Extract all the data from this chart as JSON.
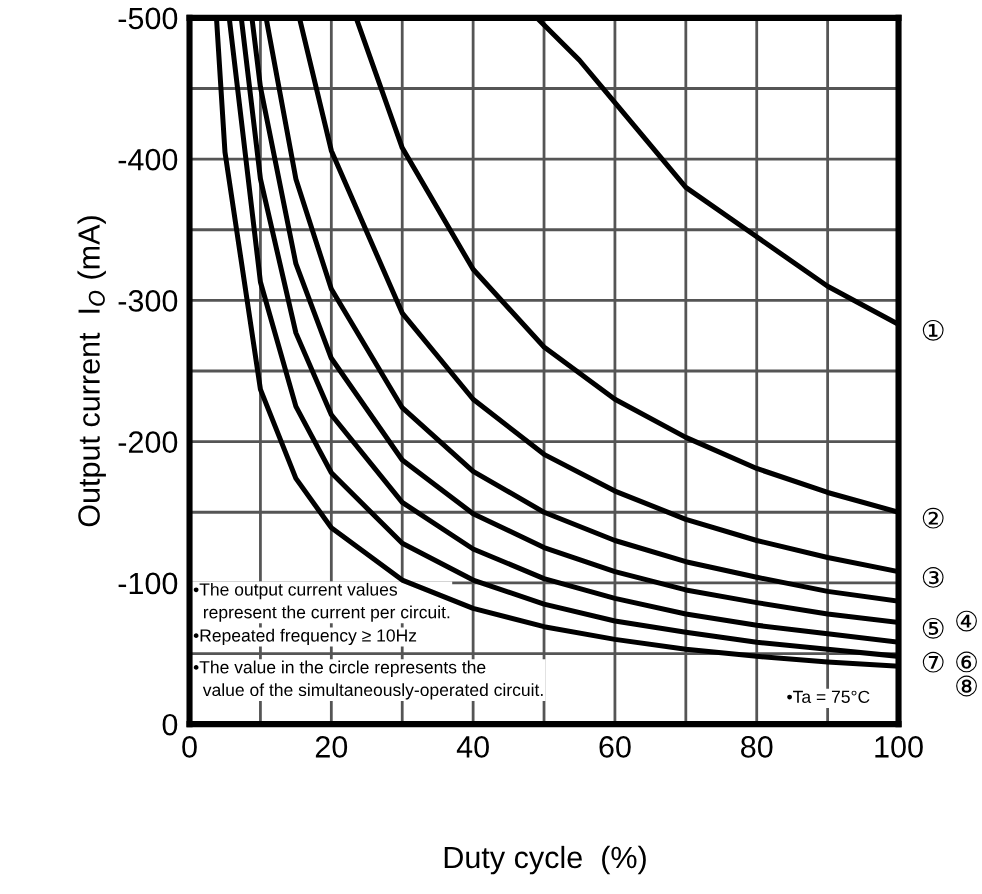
{
  "chart_data": {
    "type": "line",
    "xlabel": "Duty cycle  (%)",
    "ylabel": "Output current  I$_{O}$ (mA)",
    "xlim": [
      0,
      100
    ],
    "ylim": [
      0,
      -500
    ],
    "xticks": [
      0,
      {
        "value": 10,
        "label": null
      },
      20,
      {
        "value": 30,
        "label": null
      },
      40,
      {
        "value": 50,
        "label": null
      },
      60,
      {
        "value": 70,
        "label": null
      },
      80,
      {
        "value": 90,
        "label": null
      },
      100
    ],
    "yticks": [
      0,
      {
        "value": -50,
        "label": null
      },
      -100,
      {
        "value": -150,
        "label": null
      },
      -200,
      {
        "value": -250,
        "label": null
      },
      -300,
      {
        "value": -350,
        "label": null
      },
      -400,
      {
        "value": -450,
        "label": null
      },
      -500
    ],
    "grid": true,
    "legend": false,
    "marker": "none",
    "line_style": "solid",
    "series": [
      {
        "name": "①",
        "color": "#000000",
        "x": [
          49,
          55,
          60,
          70,
          80,
          90,
          100
        ],
        "values": [
          -500,
          -470,
          -440,
          -380,
          -345,
          -310,
          -283
        ]
      },
      {
        "name": "②",
        "color": "#000000",
        "x": [
          23.5,
          30,
          40,
          50,
          60,
          70,
          80,
          90,
          100
        ],
        "values": [
          -500,
          -408,
          -322,
          -267,
          -230,
          -203,
          -181,
          -164,
          -150
        ]
      },
      {
        "name": "③",
        "color": "#000000",
        "x": [
          15.5,
          20,
          30,
          40,
          50,
          60,
          70,
          80,
          90,
          100
        ],
        "values": [
          -500,
          -406,
          -291,
          -230,
          -191,
          -165,
          -145,
          -130,
          -118,
          -108
        ]
      },
      {
        "name": "④",
        "color": "#000000",
        "x": [
          10.8,
          15,
          20,
          30,
          40,
          50,
          60,
          70,
          80,
          90,
          100
        ],
        "values": [
          -500,
          -386,
          -308,
          -224,
          -179,
          -150,
          -130,
          -115,
          -104,
          -94,
          -87
        ]
      },
      {
        "name": "⑤",
        "color": "#000000",
        "x": [
          8.8,
          10,
          15,
          20,
          30,
          40,
          50,
          60,
          70,
          80,
          90,
          100
        ],
        "values": [
          -500,
          -451,
          -326,
          -259,
          -187,
          -149,
          -125,
          -108,
          -95,
          -86,
          -78,
          -72
        ]
      },
      {
        "name": "⑥",
        "color": "#000000",
        "x": [
          7.3,
          10,
          15,
          20,
          30,
          40,
          50,
          60,
          70,
          80,
          90,
          100
        ],
        "values": [
          -500,
          -386,
          -277,
          -219,
          -157,
          -124,
          -103,
          -89,
          -78,
          -70,
          -64,
          -58
        ]
      },
      {
        "name": "⑦",
        "color": "#000000",
        "x": [
          5.6,
          10,
          15,
          20,
          30,
          40,
          50,
          60,
          70,
          80,
          90,
          100
        ],
        "values": [
          -500,
          -313,
          -225,
          -178,
          -128,
          -102,
          -85,
          -73,
          -65,
          -58,
          -53,
          -48
        ]
      },
      {
        "name": "⑧",
        "color": "#000000",
        "x": [
          3.8,
          5,
          10,
          15,
          20,
          30,
          40,
          50,
          60,
          70,
          80,
          90,
          100
        ],
        "values": [
          -500,
          -405,
          -237,
          -174,
          -139,
          -102,
          -82,
          -69,
          -60,
          -53,
          -48,
          -44,
          -41
        ]
      }
    ],
    "annotations": [
      "•The output current values\n  represent the current per circuit.",
      "•Repeated frequency ≥ 10Hz",
      "•The value in the circle represents the\n  value of the simultaneously-operated circuit.",
      "•Ta = 75°C"
    ]
  }
}
